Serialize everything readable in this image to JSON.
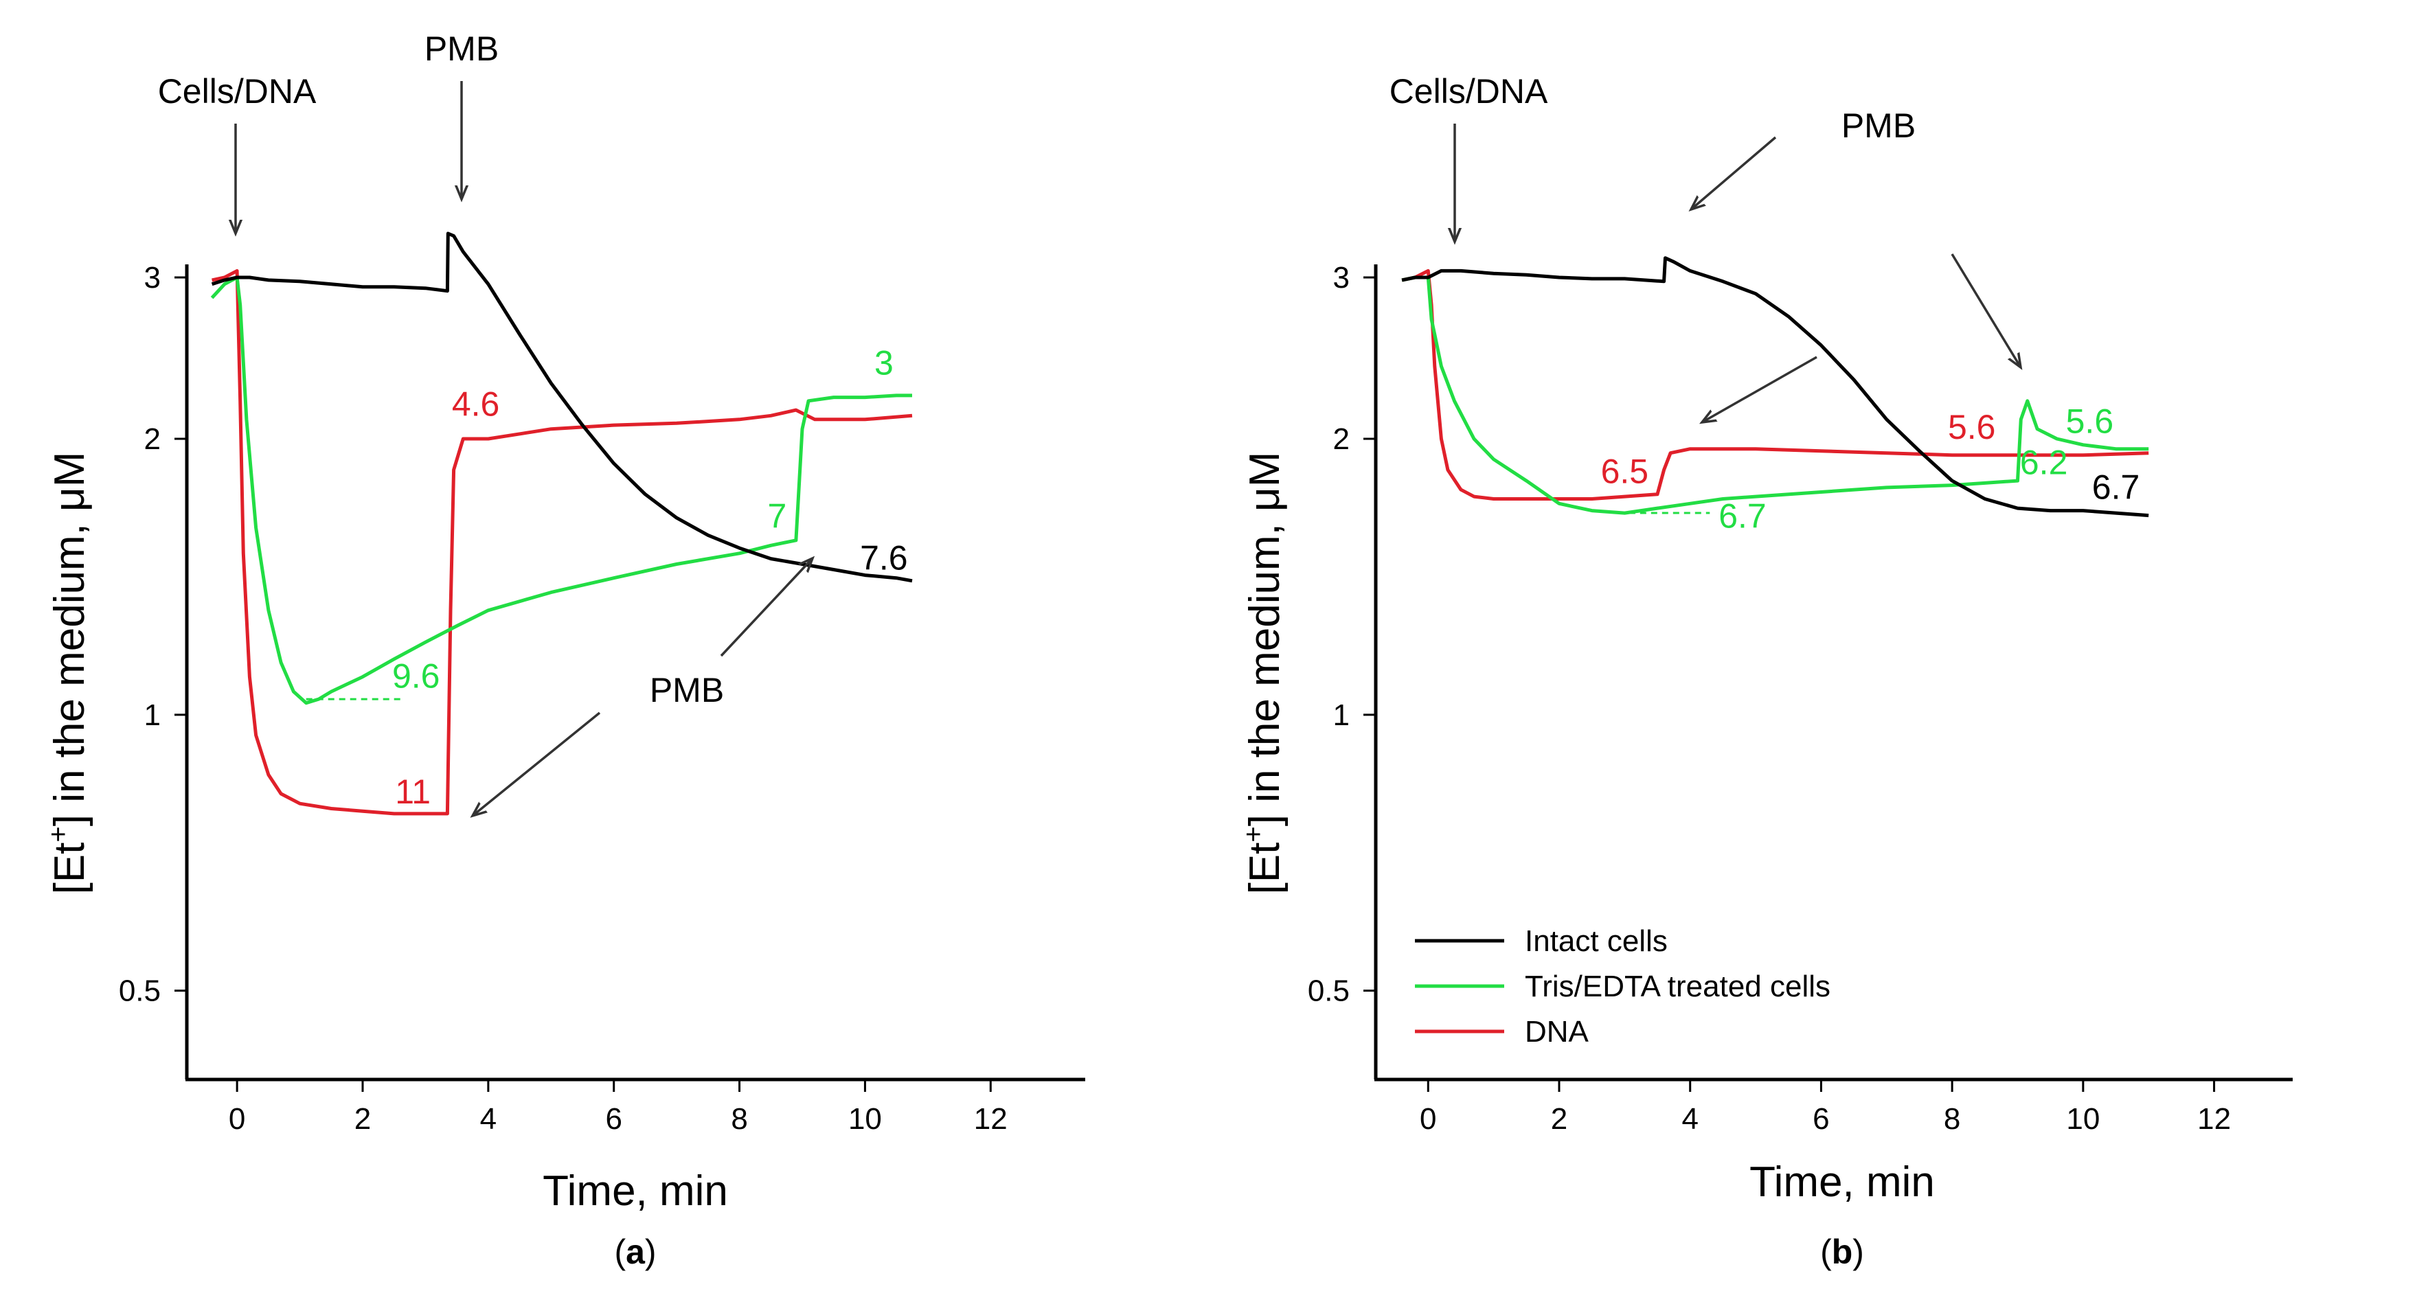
{
  "colors": {
    "intact": "#000000",
    "tris": "#22dd44",
    "dna": "#e0202a",
    "dashed": "#22dd44",
    "arrow": "#333333"
  },
  "chart_data": [
    {
      "type": "line",
      "panel_label": "a",
      "xlabel": "Time, min",
      "ylabel_prefix": "[Et",
      "ylabel_sup": "+",
      "ylabel_suffix": "] in the medium, μM",
      "yscale": "log",
      "xlim": [
        -0.8,
        13.2
      ],
      "ylim": [
        0.4,
        3.1
      ],
      "x_ticks": [
        0,
        2,
        4,
        6,
        8,
        10,
        12
      ],
      "y_ticks": [
        0.5,
        1,
        2,
        3
      ],
      "x_tick_labels": [
        "0",
        "2",
        "4",
        "6",
        "8",
        "10",
        "12"
      ],
      "y_tick_labels": [
        "0.5",
        "1",
        "2",
        "3"
      ],
      "series": [
        {
          "key": "intact",
          "x": [
            -0.4,
            -0.2,
            0,
            0.2,
            0.5,
            1,
            1.5,
            2,
            2.5,
            3,
            3.35,
            3.36,
            3.45,
            3.6,
            4,
            4.5,
            5,
            5.5,
            6,
            6.5,
            7,
            7.5,
            8,
            8.5,
            9,
            9.5,
            10,
            10.5,
            10.75
          ],
          "y": [
            2.95,
            2.98,
            3.0,
            3.0,
            2.98,
            2.97,
            2.95,
            2.93,
            2.93,
            2.92,
            2.9,
            3.35,
            3.33,
            3.2,
            2.95,
            2.6,
            2.3,
            2.07,
            1.88,
            1.74,
            1.64,
            1.57,
            1.52,
            1.48,
            1.46,
            1.44,
            1.42,
            1.41,
            1.4
          ]
        },
        {
          "key": "tris",
          "x": [
            -0.4,
            -0.2,
            0,
            0.05,
            0.15,
            0.3,
            0.5,
            0.7,
            0.9,
            1.1,
            1.3,
            1.5,
            2,
            2.5,
            3,
            3.5,
            4,
            5,
            6,
            7,
            8,
            8.5,
            8.9,
            9.0,
            9.1,
            9.5,
            10,
            10.5,
            10.75
          ],
          "y": [
            2.85,
            2.95,
            3.0,
            2.8,
            2.1,
            1.6,
            1.3,
            1.14,
            1.06,
            1.03,
            1.04,
            1.06,
            1.1,
            1.15,
            1.2,
            1.25,
            1.3,
            1.36,
            1.41,
            1.46,
            1.5,
            1.53,
            1.55,
            2.05,
            2.2,
            2.22,
            2.22,
            2.23,
            2.23
          ]
        },
        {
          "key": "dna",
          "x": [
            -0.4,
            -0.2,
            0,
            0.05,
            0.1,
            0.2,
            0.3,
            0.5,
            0.7,
            1,
            1.5,
            2,
            2.5,
            3,
            3.35,
            3.4,
            3.45,
            3.6,
            4,
            5,
            6,
            7,
            8,
            8.5,
            8.9,
            9.2,
            10,
            10.75
          ],
          "y": [
            2.98,
            3.0,
            3.05,
            2.2,
            1.5,
            1.1,
            0.95,
            0.86,
            0.82,
            0.8,
            0.79,
            0.785,
            0.78,
            0.78,
            0.78,
            1.3,
            1.85,
            2.0,
            2.0,
            2.05,
            2.07,
            2.08,
            2.1,
            2.12,
            2.15,
            2.1,
            2.1,
            2.12
          ]
        }
      ],
      "dashed_segment": {
        "x": [
          1.1,
          2.6
        ],
        "y": [
          1.04,
          1.04
        ]
      },
      "value_labels": [
        {
          "text": "4.6",
          "key": "dna",
          "x": 3.8,
          "y": 2.12
        },
        {
          "text": "11",
          "key": "dna",
          "x": 2.8,
          "y": 0.8
        },
        {
          "text": "9.6",
          "key": "tris",
          "x": 2.85,
          "y": 1.07
        },
        {
          "text": "7",
          "key": "tris",
          "x": 8.6,
          "y": 1.6
        },
        {
          "text": "3",
          "key": "tris",
          "x": 10.3,
          "y": 2.35
        },
        {
          "text": "7.6",
          "key": "intact",
          "x": 10.3,
          "y": 1.44
        }
      ],
      "arrows": [
        {
          "label": "Cells/DNA",
          "x": 0.0
        },
        {
          "label": "PMB",
          "x": 3.45
        },
        {
          "label": "PMB"
        }
      ]
    },
    {
      "type": "line",
      "panel_label": "b",
      "xlabel": "Time, min",
      "ylabel_prefix": "[Et",
      "ylabel_sup": "+",
      "ylabel_suffix": "] in the medium, μM",
      "yscale": "log",
      "xlim": [
        -0.8,
        13.2
      ],
      "ylim": [
        0.4,
        3.1
      ],
      "x_ticks": [
        0,
        2,
        4,
        6,
        8,
        10,
        12
      ],
      "y_ticks": [
        0.5,
        1,
        2,
        3
      ],
      "x_tick_labels": [
        "0",
        "2",
        "4",
        "6",
        "8",
        "10",
        "12"
      ],
      "y_tick_labels": [
        "0.5",
        "1",
        "2",
        "3"
      ],
      "series": [
        {
          "key": "intact",
          "x": [
            -0.4,
            -0.2,
            0,
            0.2,
            0.5,
            1,
            1.5,
            2,
            2.5,
            3,
            3.6,
            3.62,
            3.75,
            4,
            4.5,
            5,
            5.5,
            6,
            6.5,
            7,
            7.5,
            8,
            8.5,
            9,
            9.5,
            10,
            10.5,
            11
          ],
          "y": [
            2.98,
            3.0,
            3.0,
            3.05,
            3.05,
            3.03,
            3.02,
            3.0,
            2.99,
            2.99,
            2.97,
            3.15,
            3.12,
            3.05,
            2.97,
            2.88,
            2.72,
            2.53,
            2.32,
            2.1,
            1.94,
            1.8,
            1.72,
            1.68,
            1.67,
            1.67,
            1.66,
            1.65
          ]
        },
        {
          "key": "tris",
          "x": [
            -0.4,
            -0.2,
            0,
            0.05,
            0.1,
            0.2,
            0.4,
            0.7,
            1,
            1.5,
            2,
            2.5,
            3,
            3.5,
            4,
            4.5,
            5,
            6,
            7,
            8,
            8.5,
            9.0,
            9.05,
            9.15,
            9.3,
            9.6,
            10,
            10.5,
            11
          ],
          "y": [
            2.98,
            3.0,
            3.0,
            2.7,
            2.6,
            2.4,
            2.2,
            2.0,
            1.9,
            1.8,
            1.7,
            1.67,
            1.66,
            1.68,
            1.7,
            1.72,
            1.73,
            1.75,
            1.77,
            1.78,
            1.79,
            1.8,
            2.1,
            2.2,
            2.05,
            2.0,
            1.97,
            1.95,
            1.95
          ]
        },
        {
          "key": "dna",
          "x": [
            -0.4,
            -0.2,
            0,
            0.05,
            0.1,
            0.2,
            0.3,
            0.5,
            0.7,
            1,
            1.5,
            2,
            2.5,
            3,
            3.5,
            3.6,
            3.7,
            4,
            5,
            6,
            7,
            8,
            9,
            10,
            11
          ],
          "y": [
            2.98,
            3.0,
            3.05,
            2.8,
            2.4,
            2.0,
            1.85,
            1.76,
            1.73,
            1.72,
            1.72,
            1.72,
            1.72,
            1.73,
            1.74,
            1.85,
            1.93,
            1.95,
            1.95,
            1.94,
            1.93,
            1.92,
            1.92,
            1.92,
            1.93
          ]
        }
      ],
      "dashed_segment": {
        "x": [
          2.9,
          4.3
        ],
        "y": [
          1.66,
          1.66
        ]
      },
      "value_labels": [
        {
          "text": "6.5",
          "key": "dna",
          "x": 3.0,
          "y": 1.79
        },
        {
          "text": "6.7",
          "key": "tris",
          "x": 4.8,
          "y": 1.6
        },
        {
          "text": "5.6",
          "key": "dna",
          "x": 8.3,
          "y": 2.0
        },
        {
          "text": "6.2",
          "key": "tris",
          "x": 9.4,
          "y": 1.83
        },
        {
          "text": "5.6",
          "key": "tris",
          "x": 10.1,
          "y": 2.03
        },
        {
          "text": "6.7",
          "key": "intact",
          "x": 10.5,
          "y": 1.72
        }
      ],
      "arrows": [
        {
          "label": "Cells/DNA",
          "x": 0.15
        },
        {
          "label": "PMB",
          "x": 3.6
        }
      ],
      "legend": {
        "placement": "bottom-left",
        "entries": [
          {
            "key": "intact",
            "label": "Intact cells"
          },
          {
            "key": "tris",
            "label": "Tris/EDTA treated cells"
          },
          {
            "key": "dna",
            "label": "DNA"
          }
        ]
      }
    }
  ]
}
